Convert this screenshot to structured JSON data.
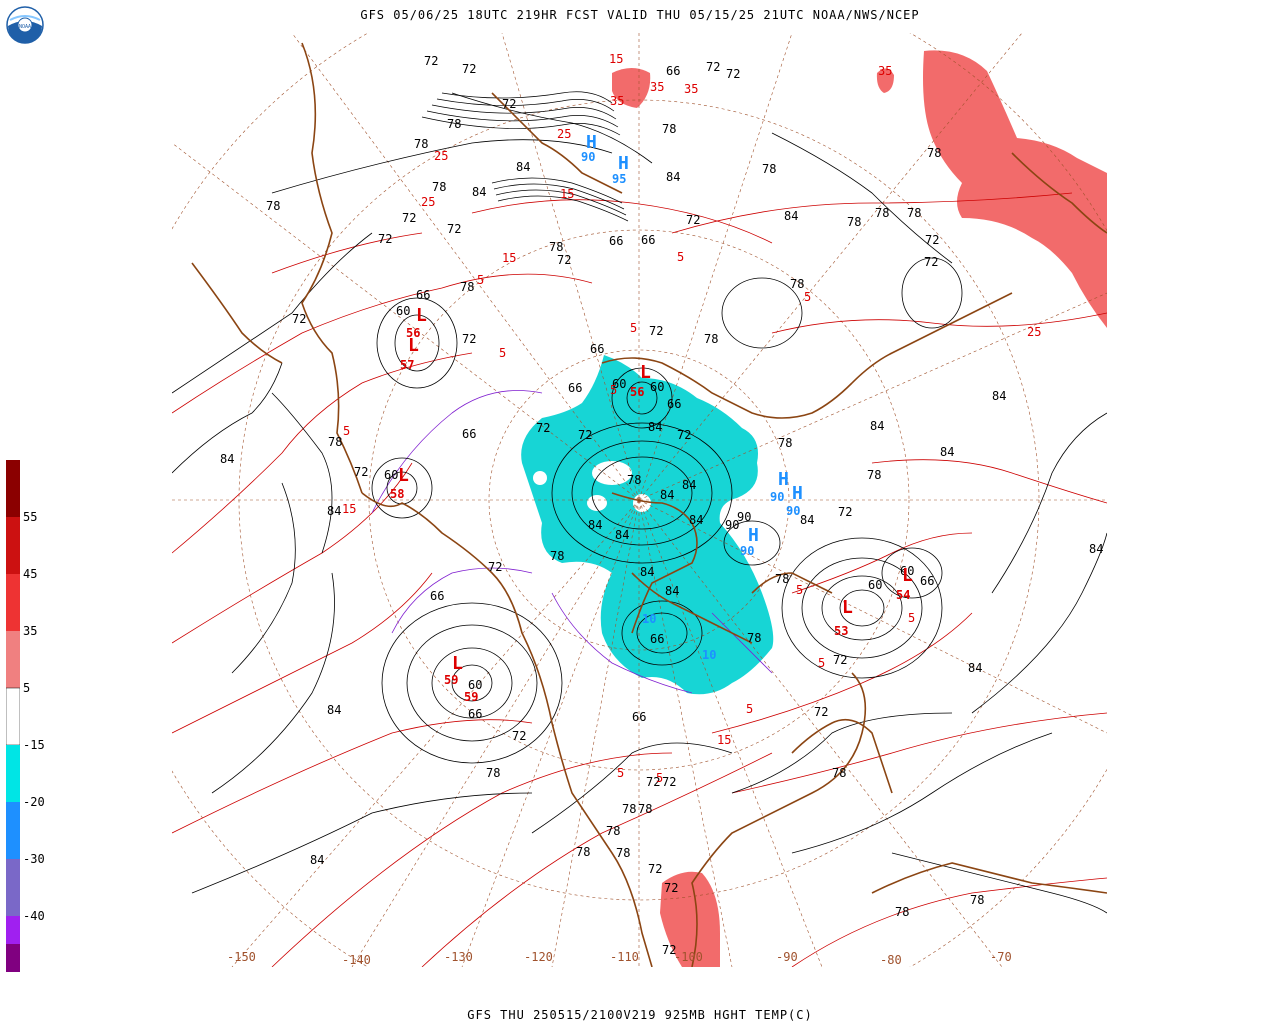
{
  "header": {
    "title": "GFS 05/06/25 18UTC 219HR FCST VALID THU 05/15/25 21UTC NOAA/NWS/NCEP"
  },
  "footer": {
    "caption": "GFS THU 250515/2100V219 925MB HGHT TEMP(C)"
  },
  "logo": {
    "text": "NOAA"
  },
  "legend": {
    "colors": [
      "#8b0000",
      "#cc0000",
      "#ee3333",
      "#f08080",
      "#ffffff",
      "#00e5e5",
      "#1e90ff",
      "#3a6ad4",
      "#7a68c8",
      "#a020f0",
      "#800080"
    ],
    "labels": [
      "55",
      "45",
      "35",
      "5",
      "-15",
      "-20",
      "-30",
      "-40"
    ]
  },
  "map": {
    "longitude_labels": [
      "-150",
      "-140",
      "-130",
      "-120",
      "-110",
      "-100",
      "-90",
      "-80",
      "-70"
    ],
    "height_labels": [
      "72",
      "72",
      "78",
      "78",
      "72",
      "66",
      "72",
      "72",
      "78",
      "78",
      "84",
      "84",
      "84",
      "78",
      "84",
      "78",
      "72",
      "72",
      "72",
      "72",
      "78",
      "78",
      "78",
      "72",
      "66",
      "66",
      "72",
      "78",
      "78",
      "72",
      "78",
      "78",
      "72",
      "72",
      "66",
      "60",
      "60",
      "72",
      "66",
      "66",
      "60",
      "60",
      "66",
      "72",
      "72",
      "78",
      "78",
      "84",
      "84",
      "84",
      "84",
      "78",
      "72",
      "66",
      "72",
      "78",
      "84",
      "84",
      "78",
      "84",
      "84",
      "84",
      "84",
      "90",
      "90",
      "72",
      "84",
      "78",
      "84",
      "78",
      "84",
      "66",
      "60",
      "60",
      "66",
      "72",
      "84",
      "84",
      "72",
      "78",
      "72",
      "66",
      "60",
      "66",
      "66",
      "72",
      "78",
      "84",
      "84",
      "72",
      "78",
      "78",
      "78",
      "78",
      "78",
      "72",
      "72",
      "72",
      "72",
      "78",
      "78",
      "78",
      "84"
    ],
    "temp_labels": [
      "35",
      "35",
      "35",
      "35",
      "25",
      "25",
      "25",
      "15",
      "5",
      "5",
      "5",
      "5",
      "15",
      "15",
      "5",
      "5",
      "5",
      "15",
      "5",
      "15",
      "5",
      "5",
      "5",
      "5",
      "25",
      "5"
    ],
    "low_centers": [
      "L",
      "L",
      "L",
      "L",
      "L",
      "L",
      "L"
    ],
    "high_centers": [
      "H",
      "H",
      "H",
      "H",
      "H"
    ],
    "center_values": [
      "56",
      "57",
      "58",
      "59",
      "59",
      "56",
      "54",
      "53",
      "90",
      "90",
      "90",
      "90",
      "95",
      "10",
      "10"
    ]
  }
}
